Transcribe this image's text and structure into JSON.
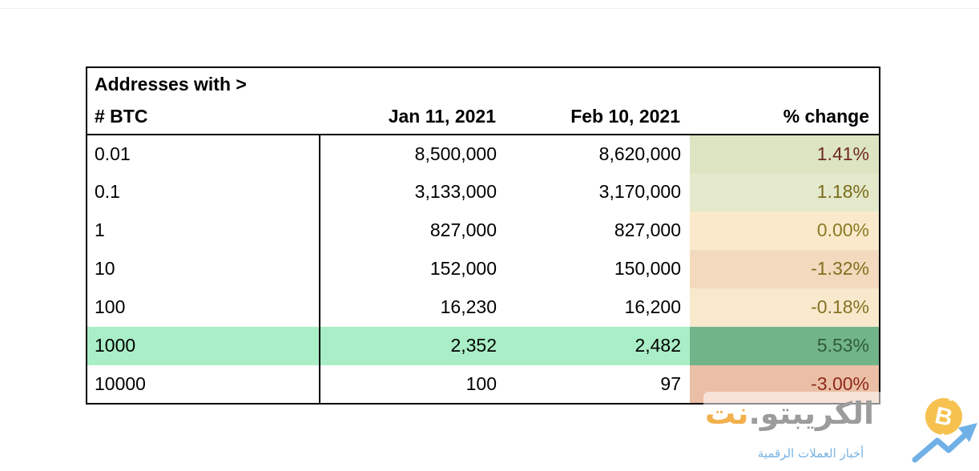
{
  "table": {
    "header": {
      "col1_line1": "Addresses with >",
      "col1_line2": "# BTC",
      "col2": "Jan 11, 2021",
      "col3": "Feb 10, 2021",
      "col4": "% change"
    },
    "rows": [
      {
        "btc": "0.01",
        "jan": "8,500,000",
        "feb": "8,620,000",
        "change": "1.41%",
        "row_bg": "#ffffff",
        "change_bg": "#dde4c2",
        "change_color": "#6f2b1d"
      },
      {
        "btc": "0.1",
        "jan": "3,133,000",
        "feb": "3,170,000",
        "change": "1.18%",
        "row_bg": "#ffffff",
        "change_bg": "#e3e9ca",
        "change_color": "#7c6b1e"
      },
      {
        "btc": "1",
        "jan": "827,000",
        "feb": "827,000",
        "change": "0.00%",
        "row_bg": "#ffffff",
        "change_bg": "#faeacb",
        "change_color": "#8c7a26"
      },
      {
        "btc": "10",
        "jan": "152,000",
        "feb": "150,000",
        "change": "-1.32%",
        "row_bg": "#ffffff",
        "change_bg": "#f3d9bd",
        "change_color": "#82701f"
      },
      {
        "btc": "100",
        "jan": "16,230",
        "feb": "16,200",
        "change": "-0.18%",
        "row_bg": "#ffffff",
        "change_bg": "#f8e9cd",
        "change_color": "#857222"
      },
      {
        "btc": "1000",
        "jan": "2,352",
        "feb": "2,482",
        "change": "5.53%",
        "row_bg": "#a9eec6",
        "change_bg": "#72b489",
        "change_color": "#2e5c38"
      },
      {
        "btc": "10000",
        "jan": "100",
        "feb": "97",
        "change": "-3.00%",
        "row_bg": "#ffffff",
        "change_bg": "#eabfa6",
        "change_color": "#8e2a19"
      }
    ]
  },
  "watermark": {
    "brand_gray": "الكريبتو.",
    "brand_orange": "نت",
    "tagline": "أخبار العملات الرقمية",
    "coin_letter": "B",
    "colors": {
      "brand_gray": "#9c9c9c",
      "brand_orange": "#f2b04b",
      "tagline_blue": "#79b3e2",
      "coin_fill": "#f6c14e",
      "coin_glyph": "#ffffff",
      "arrow_blue": "#6fb0e6"
    }
  }
}
